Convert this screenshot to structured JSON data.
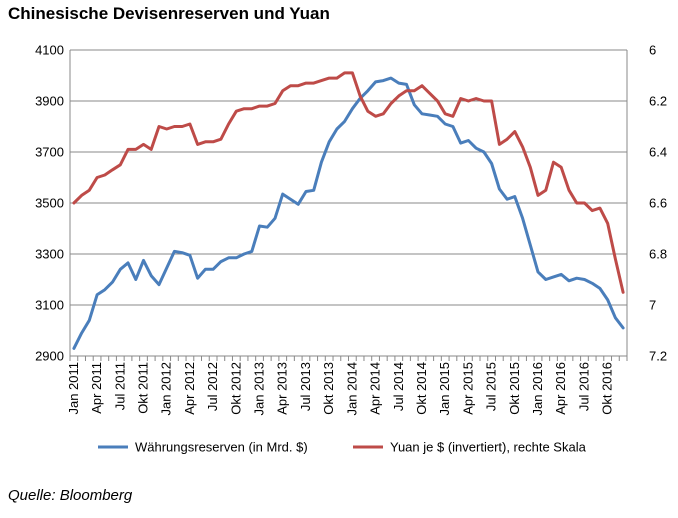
{
  "chart_data": {
    "type": "line",
    "title": "Chinesische Devisenreserven und Yuan",
    "source": "Quelle: Bloomberg",
    "x_labels": [
      "Jan 2011",
      "Apr 2011",
      "Jul 2011",
      "Okt 2011",
      "Jan 2012",
      "Apr 2012",
      "Jul 2012",
      "Okt 2012",
      "Jan 2013",
      "Apr 2013",
      "Jul 2013",
      "Okt 2013",
      "Jan 2014",
      "Apr 2014",
      "Jul 2014",
      "Okt 2014",
      "Jan 2015",
      "Apr 2015",
      "Jul 2015",
      "Okt 2015",
      "Jan 2016",
      "Apr 2016",
      "Jul 2016",
      "Okt 2016"
    ],
    "y_left": {
      "min": 2900,
      "max": 4100,
      "ticks": [
        "2900",
        "3100",
        "3300",
        "3500",
        "3700",
        "3900",
        "4100"
      ]
    },
    "y_right": {
      "min": 6,
      "max": 7.2,
      "inverted": true,
      "ticks": [
        "6",
        "6.2",
        "6.4",
        "6.6",
        "6.8",
        "7",
        "7.2"
      ]
    },
    "grid": true,
    "legend_position": "bottom",
    "series": [
      {
        "name": "Währungsreserven (in Mrd. $)",
        "axis": "left",
        "color": "#4a7ebb",
        "values": [
          2930,
          2990,
          3040,
          3140,
          3160,
          3190,
          3240,
          3265,
          3200,
          3275,
          3215,
          3180,
          3245,
          3310,
          3305,
          3295,
          3205,
          3240,
          3240,
          3270,
          3285,
          3285,
          3300,
          3310,
          3410,
          3405,
          3440,
          3535,
          3515,
          3495,
          3545,
          3550,
          3660,
          3740,
          3790,
          3820,
          3870,
          3910,
          3940,
          3975,
          3980,
          3990,
          3970,
          3965,
          3885,
          3850,
          3845,
          3840,
          3810,
          3800,
          3735,
          3745,
          3715,
          3700,
          3655,
          3555,
          3515,
          3525,
          3440,
          3335,
          3230,
          3200,
          3210,
          3220,
          3195,
          3205,
          3200,
          3185,
          3165,
          3120,
          3050,
          3010
        ]
      },
      {
        "name": "Yuan je $ (invertiert), rechte Skala",
        "axis": "right",
        "color": "#be4b48",
        "values": [
          6.6,
          6.57,
          6.55,
          6.5,
          6.49,
          6.47,
          6.45,
          6.39,
          6.39,
          6.37,
          6.39,
          6.3,
          6.31,
          6.3,
          6.3,
          6.29,
          6.37,
          6.36,
          6.36,
          6.35,
          6.29,
          6.24,
          6.23,
          6.23,
          6.22,
          6.22,
          6.21,
          6.16,
          6.14,
          6.14,
          6.13,
          6.13,
          6.12,
          6.11,
          6.11,
          6.09,
          6.09,
          6.18,
          6.24,
          6.26,
          6.25,
          6.21,
          6.18,
          6.16,
          6.16,
          6.14,
          6.17,
          6.2,
          6.25,
          6.26,
          6.19,
          6.2,
          6.19,
          6.2,
          6.2,
          6.37,
          6.35,
          6.32,
          6.38,
          6.46,
          6.57,
          6.55,
          6.44,
          6.46,
          6.55,
          6.6,
          6.6,
          6.63,
          6.62,
          6.68,
          6.82,
          6.95
        ]
      }
    ]
  }
}
